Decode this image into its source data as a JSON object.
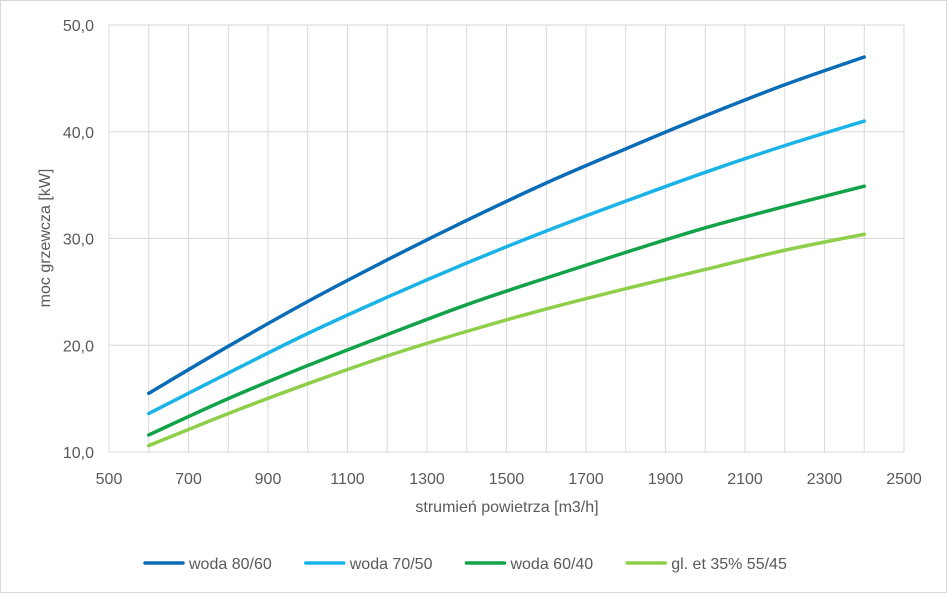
{
  "chart_data": {
    "type": "line",
    "title": "",
    "xlabel": "strumień powietrza [m3/h]",
    "ylabel": "moc grzewcza [kW]",
    "xlim": [
      500,
      2500
    ],
    "ylim": [
      10,
      50
    ],
    "x_ticks": [
      "500",
      "700",
      "900",
      "1100",
      "1300",
      "1500",
      "1700",
      "1900",
      "2100",
      "2300",
      "2500"
    ],
    "y_ticks": [
      "10,0",
      "20,0",
      "30,0",
      "40,0",
      "50,0"
    ],
    "grid": true,
    "legend_position": "bottom",
    "x": [
      600,
      800,
      1000,
      1200,
      1400,
      1600,
      1800,
      2000,
      2200,
      2400
    ],
    "series": [
      {
        "name": "woda 80/60",
        "color": "#0a6cb6",
        "values": [
          15.5,
          19.9,
          24.1,
          28.0,
          31.7,
          35.2,
          38.4,
          41.5,
          44.4,
          47.0
        ]
      },
      {
        "name": "woda 70/50",
        "color": "#1ab3e8",
        "values": [
          13.6,
          17.4,
          21.1,
          24.5,
          27.7,
          30.7,
          33.5,
          36.2,
          38.7,
          41.0
        ]
      },
      {
        "name": "woda 60/40",
        "color": "#12a349",
        "values": [
          11.6,
          15.0,
          18.1,
          21.0,
          23.8,
          26.3,
          28.7,
          31.0,
          33.0,
          34.9
        ]
      },
      {
        "name": "gl. et 35% 55/45",
        "color": "#8ecf4a",
        "values": [
          10.6,
          13.6,
          16.4,
          19.0,
          21.3,
          23.4,
          25.3,
          27.1,
          28.9,
          30.4
        ]
      }
    ]
  }
}
